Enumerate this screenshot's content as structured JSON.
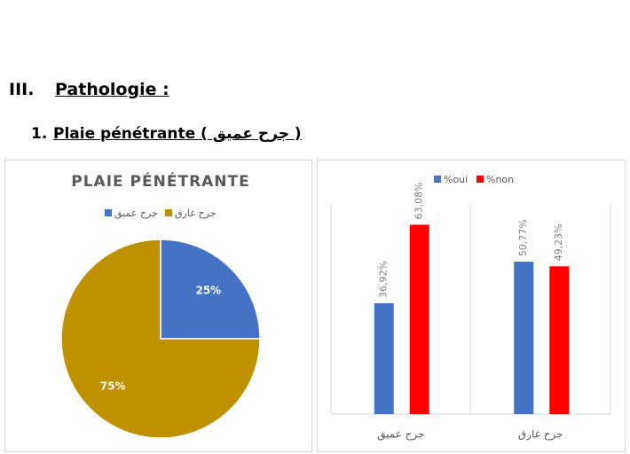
{
  "section": {
    "number": "III.",
    "title": "Pathologie :"
  },
  "subsection": {
    "number": "1.",
    "title": "Plaie pénétrante",
    "arabic": "( جرح عميق )"
  },
  "chart_data": [
    {
      "type": "pie",
      "title": "PLAIE PÉNÉTRANTE",
      "categories": [
        "جرح عميق",
        "جرح غارق"
      ],
      "values": [
        25,
        75
      ],
      "value_labels": [
        "25%",
        "75%"
      ],
      "colors": [
        "#4472c4",
        "#bf9000"
      ],
      "legend": "top"
    },
    {
      "type": "bar",
      "categories": [
        "جرح عميق",
        "جرح غارق"
      ],
      "series": [
        {
          "name": "%oui",
          "color": "#4472c4",
          "values": [
            36.92,
            50.77
          ],
          "value_labels": [
            "36,92%",
            "50,77%"
          ]
        },
        {
          "name": "%non",
          "color": "#ff0000",
          "values": [
            63.08,
            49.23
          ],
          "value_labels": [
            "63,08%",
            "49,23%"
          ]
        }
      ],
      "ylim": [
        0,
        70
      ],
      "legend": "top"
    }
  ]
}
